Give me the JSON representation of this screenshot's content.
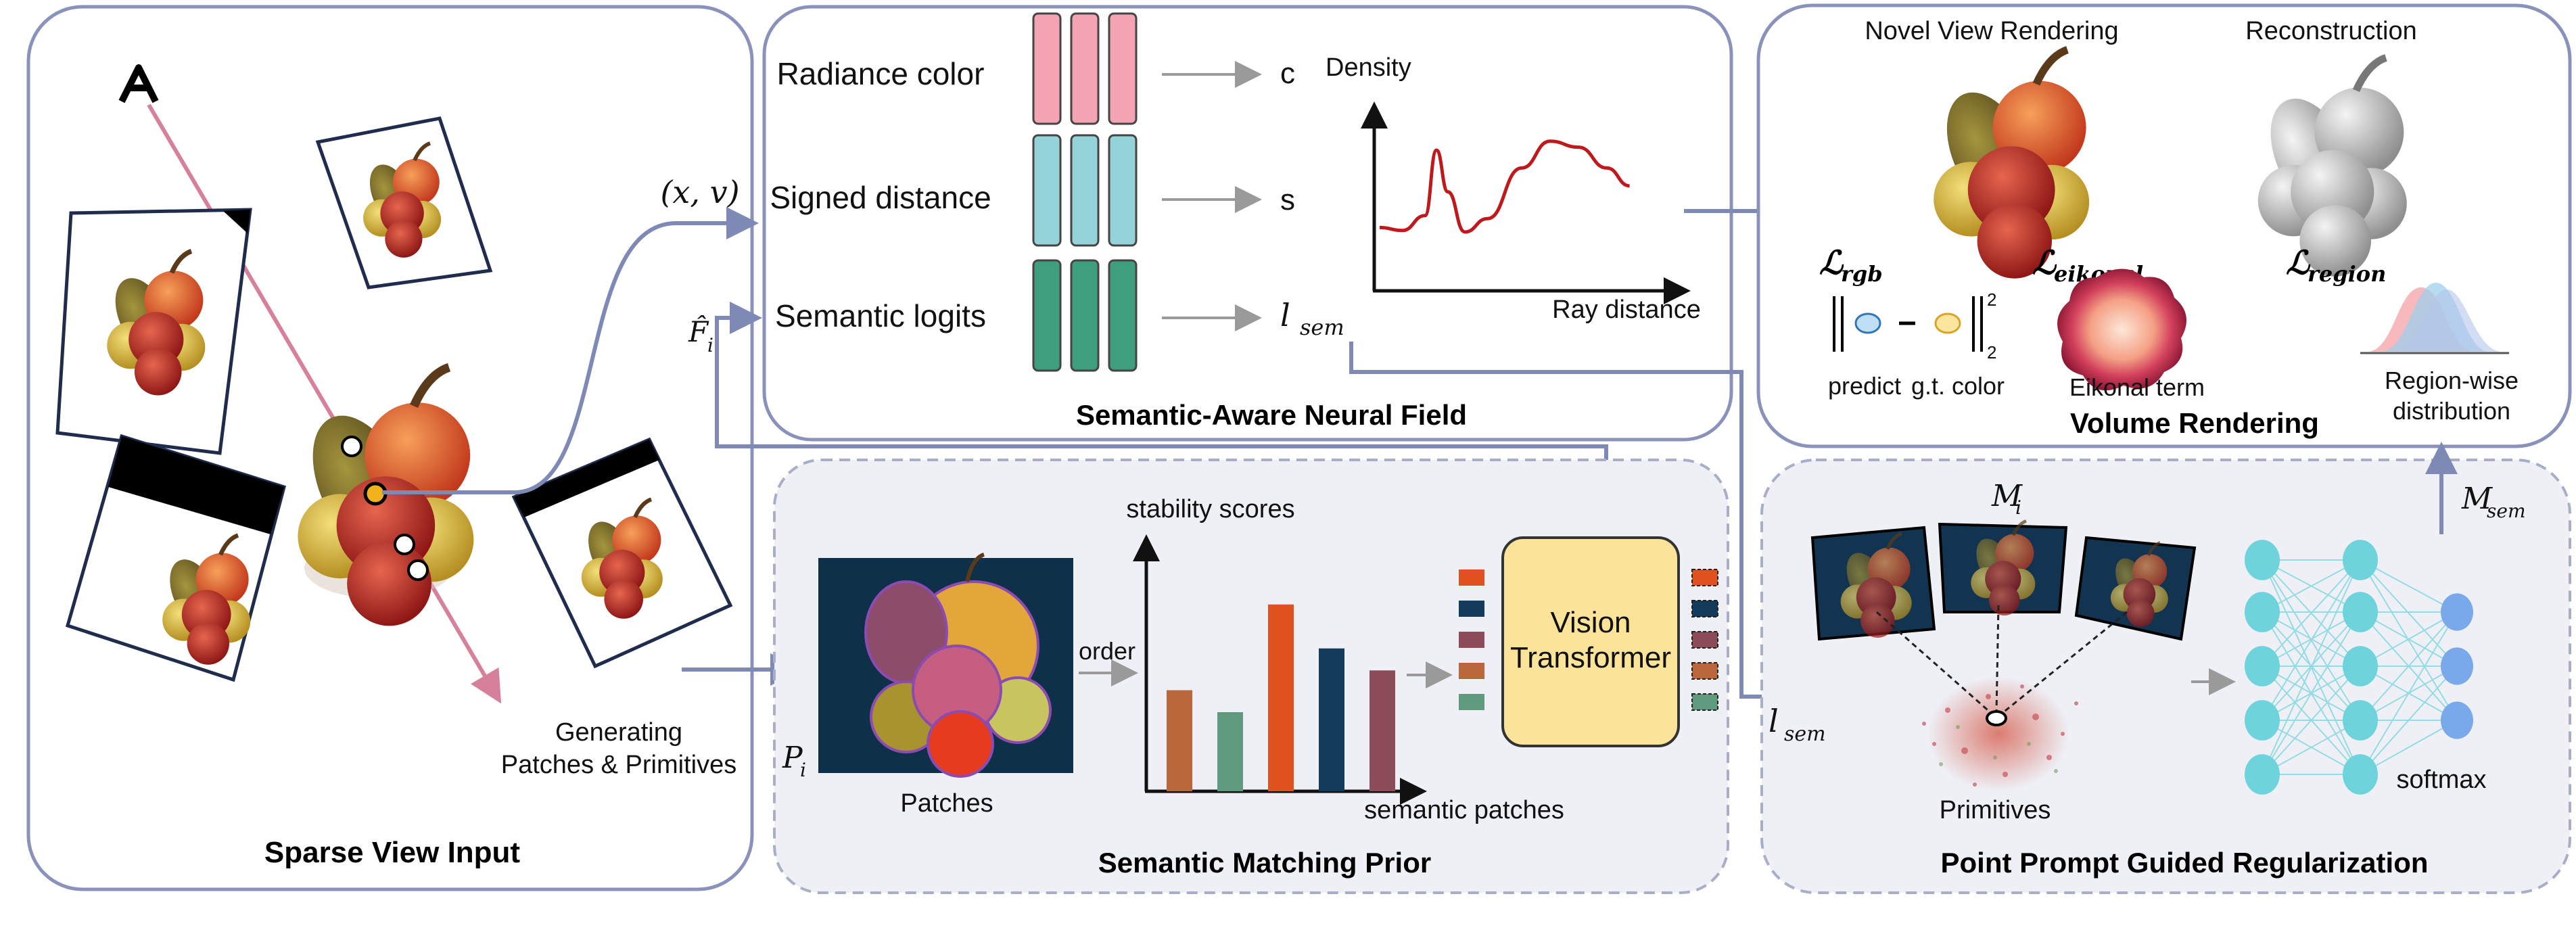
{
  "panels": {
    "sparse_view": {
      "title": "Sparse View Input",
      "caption_line1": "Generating",
      "caption_line2": "Patches & Primitives",
      "xv_label": "(x, v)",
      "fi_label": "F̂",
      "fi_sub": "i"
    },
    "neural_field": {
      "title": "Semantic-Aware Neural Field",
      "rows": [
        "Radiance color",
        "Signed distance",
        "Semantic logits"
      ],
      "outputs": [
        "c",
        "s",
        "l"
      ],
      "output_sub": "sem",
      "density_label": "Density",
      "ray_label": "Ray distance"
    },
    "volume_rendering": {
      "title": "Volume Rendering",
      "novel_view": "Novel View Rendering",
      "reconstruction": "Reconstruction",
      "loss_rgb": "ℒ",
      "loss_rgb_sub": "rgb",
      "loss_eikonal": "ℒ",
      "loss_eikonal_sub": "eikonal",
      "loss_region": "ℒ",
      "loss_region_sub": "region",
      "predict": "predict",
      "gt_color": "g.t. color",
      "eikonal_term": "Eikonal term",
      "region_line1": "Region-wise",
      "region_line2": "distribution",
      "norm_sup": "2",
      "norm_sub": "2"
    },
    "matching_prior": {
      "title": "Semantic Matching Prior",
      "stability": "stability scores",
      "order": "order",
      "patches": "Patches",
      "semantic_patches": "semantic patches",
      "vit_line1": "Vision",
      "vit_line2": "Transformer",
      "pi_label": "P",
      "pi_sub": "i"
    },
    "point_prompt": {
      "title": "Point Prompt Guided Regularization",
      "mi_label": "M",
      "mi_sub": "i",
      "msem_label": "M",
      "msem_sub": "sem",
      "lsem_label": "l",
      "lsem_sub": "sem",
      "primitives": "Primitives",
      "softmax": "softmax"
    }
  },
  "colors": {
    "frame": "#8a92bb",
    "dashed_frame": "#a8aec8",
    "prior_bg": "#eef0f6",
    "pink": "#f4a3b3",
    "cyan": "#94d3d9",
    "green": "#3e9e7e",
    "curve": "#c0191c",
    "vit": "#fbe39a",
    "node": "#6fd3dc",
    "softmax_node": "#79a9ea"
  },
  "chart_data": {
    "type": "bar",
    "ylabel": "stability scores",
    "xlabel": "semantic patches",
    "values": [
      0.46,
      0.36,
      0.85,
      0.65,
      0.55
    ],
    "colors": [
      "#b9673a",
      "#5f9a7f",
      "#e05220",
      "#143a5c",
      "#8c4c5a"
    ]
  },
  "density_curve": {
    "xlabel": "Ray distance",
    "ylabel": "Density",
    "points": [
      [
        0,
        0.38
      ],
      [
        0.08,
        0.36
      ],
      [
        0.16,
        0.46
      ],
      [
        0.2,
        0.9
      ],
      [
        0.24,
        0.62
      ],
      [
        0.3,
        0.35
      ],
      [
        0.38,
        0.44
      ],
      [
        0.5,
        0.78
      ],
      [
        0.6,
        0.96
      ],
      [
        0.7,
        0.92
      ],
      [
        0.8,
        0.78
      ],
      [
        0.88,
        0.66
      ]
    ]
  }
}
